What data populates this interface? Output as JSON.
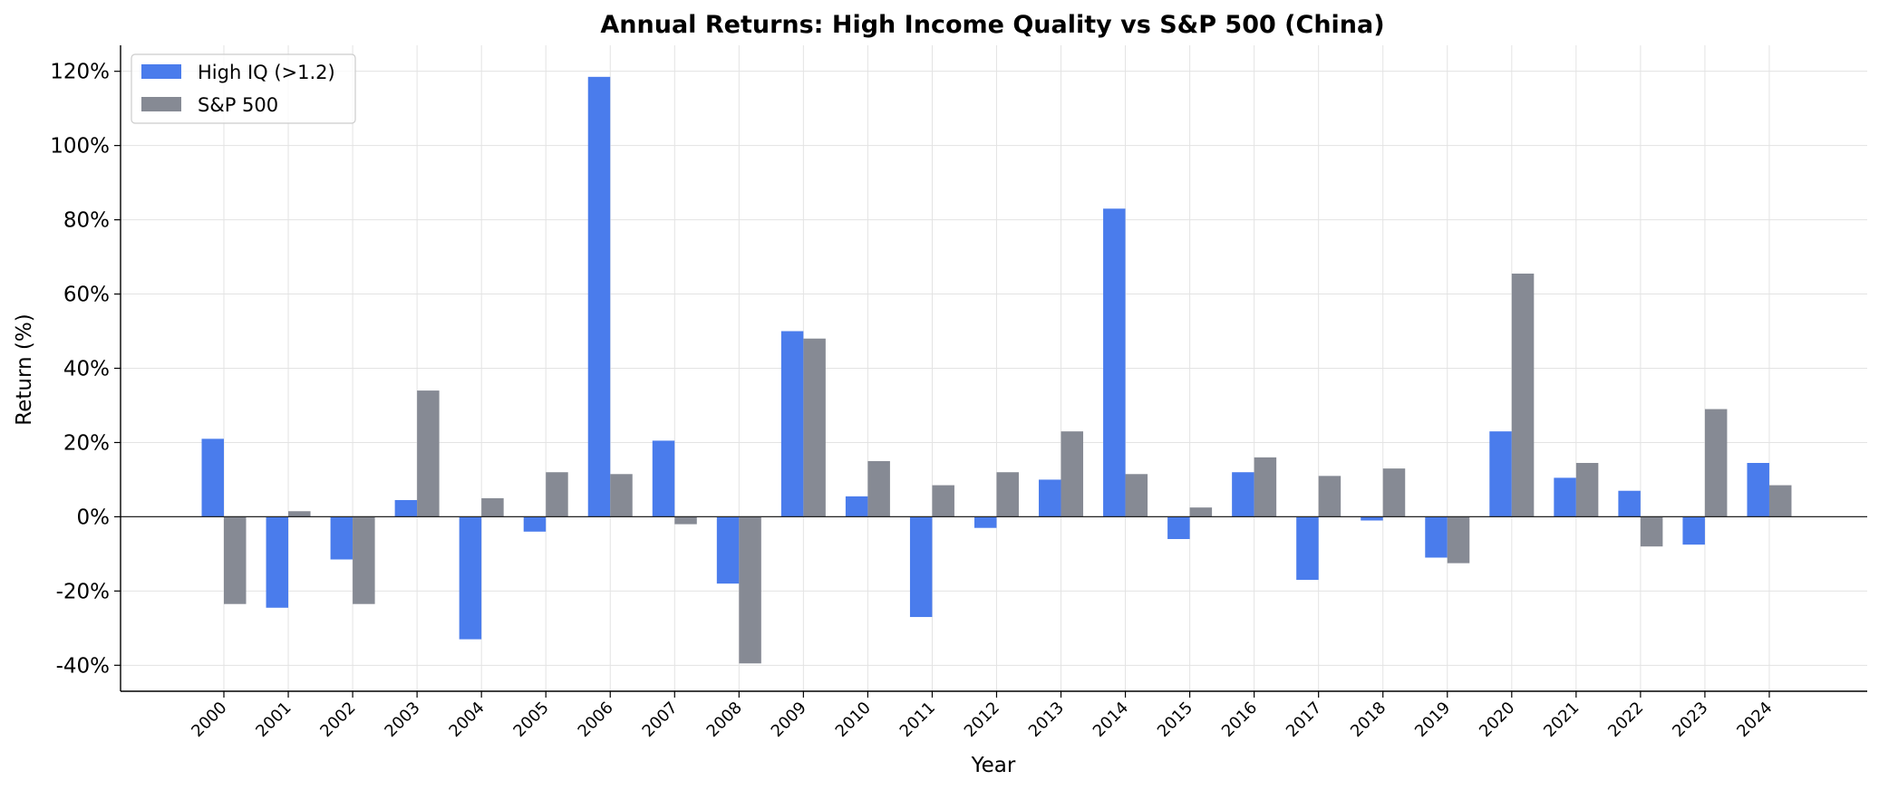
{
  "chart_data": {
    "type": "bar",
    "title": "Annual Returns: High Income Quality vs S&P 500 (China)",
    "xlabel": "Year",
    "ylabel": "Return (%)",
    "categories": [
      "2000",
      "2001",
      "2002",
      "2003",
      "2004",
      "2005",
      "2006",
      "2007",
      "2008",
      "2009",
      "2010",
      "2011",
      "2012",
      "2013",
      "2014",
      "2015",
      "2016",
      "2017",
      "2018",
      "2019",
      "2020",
      "2021",
      "2022",
      "2023",
      "2024"
    ],
    "series": [
      {
        "name": "High IQ (>1.2)",
        "color": "#4a7cec",
        "values": [
          21.0,
          -24.5,
          -11.5,
          4.5,
          -33.0,
          -4.0,
          118.5,
          20.5,
          -18.0,
          50.0,
          5.5,
          -27.0,
          -3.0,
          10.0,
          83.0,
          -6.0,
          12.0,
          -17.0,
          -1.0,
          -11.0,
          23.0,
          10.5,
          7.0,
          -7.5,
          14.5
        ]
      },
      {
        "name": "S&P 500",
        "color": "#868a94",
        "values": [
          -23.5,
          1.5,
          -23.5,
          34.0,
          5.0,
          12.0,
          11.5,
          -2.0,
          -39.5,
          48.0,
          15.0,
          8.5,
          12.0,
          23.0,
          11.5,
          2.5,
          16.0,
          11.0,
          13.0,
          -12.5,
          65.5,
          14.5,
          -8.0,
          29.0,
          8.5
        ]
      }
    ],
    "ylim": [
      -47,
      127
    ],
    "yticks": [
      -40,
      -20,
      0,
      20,
      40,
      60,
      80,
      100,
      120
    ],
    "ytick_labels": [
      "-40%",
      "-20%",
      "0%",
      "20%",
      "40%",
      "60%",
      "80%",
      "100%",
      "120%"
    ],
    "grid": true,
    "legend_position": "top-left"
  }
}
